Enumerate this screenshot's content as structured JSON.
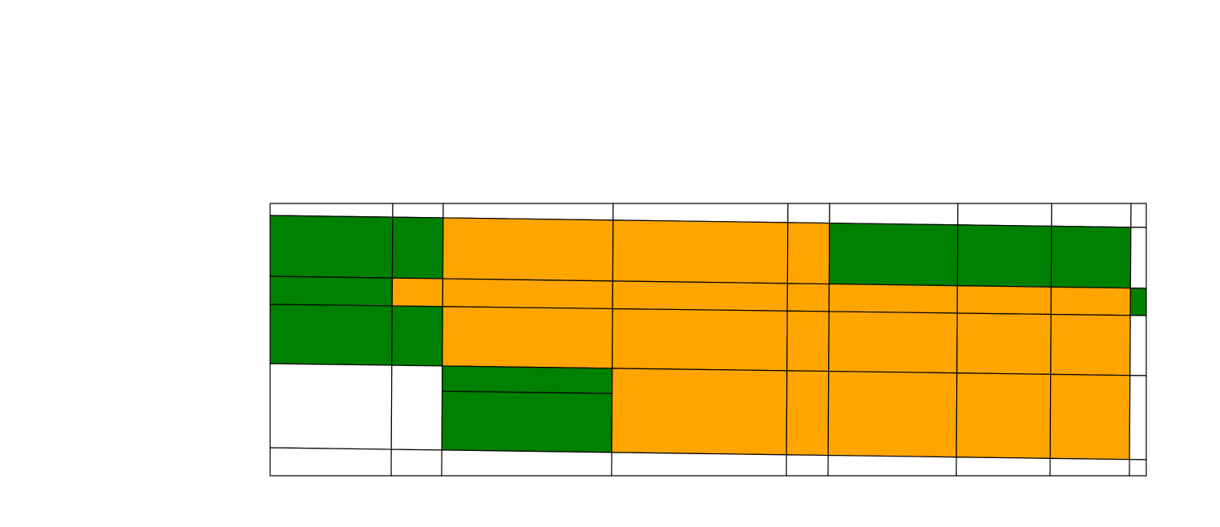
{
  "colors": {
    "background": "#ffffff",
    "stroke": "#000000",
    "green": "#008000",
    "orange": "#ffa500"
  },
  "grid": {
    "columns": 9,
    "rows": 6,
    "cells": [
      [
        "empty",
        "empty",
        "empty",
        "empty",
        "empty",
        "empty",
        "empty",
        "empty",
        "empty"
      ],
      [
        "green",
        "green",
        "orange",
        "orange",
        "orange",
        "green",
        "green",
        "green",
        "empty"
      ],
      [
        "green",
        "orange",
        "orange",
        "orange",
        "orange",
        "orange",
        "orange",
        "orange",
        "green"
      ],
      [
        "green",
        "green",
        "orange",
        "orange",
        "orange",
        "orange",
        "orange",
        "orange",
        "empty"
      ],
      [
        "empty",
        "empty",
        "green-split",
        "orange",
        "orange",
        "orange",
        "orange",
        "orange",
        "empty"
      ],
      [
        "empty",
        "empty",
        "empty",
        "empty",
        "empty",
        "empty",
        "empty",
        "empty",
        "empty"
      ]
    ]
  }
}
